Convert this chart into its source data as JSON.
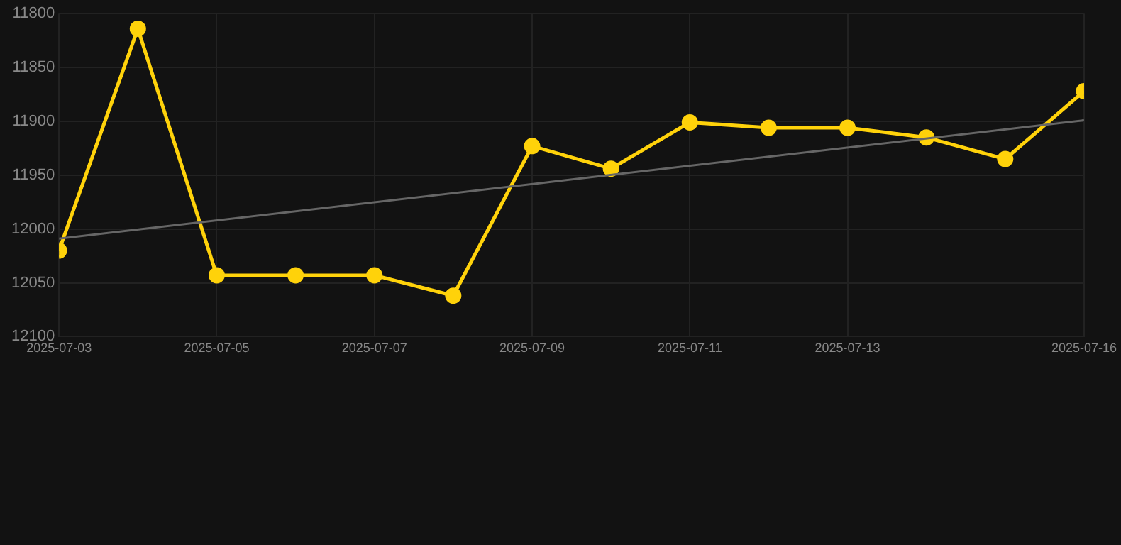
{
  "chart_data": {
    "type": "line",
    "x": [
      "2025-07-03",
      "2025-07-04",
      "2025-07-05",
      "2025-07-06",
      "2025-07-07",
      "2025-07-08",
      "2025-07-09",
      "2025-07-10",
      "2025-07-11",
      "2025-07-12",
      "2025-07-13",
      "2025-07-14",
      "2025-07-15",
      "2025-07-16"
    ],
    "series": [
      {
        "color": "#ffd20a",
        "values": [
          12020,
          11814,
          12043,
          12043,
          12043,
          12062,
          11923,
          11944,
          11901,
          11906,
          11906,
          11915,
          11935,
          11872
        ]
      },
      {
        "type": "line",
        "color": "#666666",
        "marker": "none",
        "x": [
          "2025-07-03",
          "2025-07-16"
        ],
        "values": [
          12009,
          11899
        ]
      }
    ],
    "xlim": [
      "2025-07-03",
      "2025-07-16"
    ],
    "xticks": [
      "2025-07-03",
      "2025-07-05",
      "2025-07-07",
      "2025-07-09",
      "2025-07-11",
      "2025-07-13",
      "2025-07-16"
    ],
    "ylim": [
      12100,
      11800
    ],
    "yticks": [
      11800,
      11850,
      11900,
      11950,
      12000,
      12050,
      12100
    ],
    "grid": true,
    "marker": "circle",
    "line_style": "solid",
    "legend": false
  }
}
